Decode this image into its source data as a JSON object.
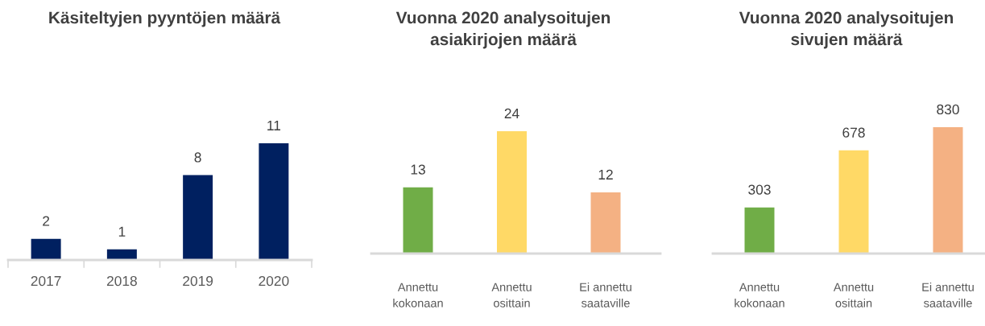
{
  "chart_data": [
    {
      "type": "bar",
      "title": "Käsiteltyjen pyyntöjen määrä",
      "categories": [
        "2017",
        "2018",
        "2019",
        "2020"
      ],
      "values": [
        2,
        1,
        8,
        11
      ],
      "color": "#002060",
      "data_labels": true,
      "tick_labels": "x"
    },
    {
      "type": "bar",
      "title": "Vuonna 2020 analysoitujen\nasiakirjojen määrä",
      "categories": [
        "Annettu\nkokonaan",
        "Annettu\nosittain",
        "Ei annettu\nsaataville"
      ],
      "values": [
        13,
        24,
        12
      ],
      "colors": [
        "#70ad47",
        "#ffd966",
        "#f4b183"
      ],
      "data_labels": true,
      "tick_labels": "x"
    },
    {
      "type": "bar",
      "title": "Vuonna 2020 analysoitujen\nsivujen määrä",
      "categories": [
        "Annettu\nkokonaan",
        "Annettu\nosittain",
        "Ei annettu\nsaataville"
      ],
      "values": [
        303,
        678,
        830
      ],
      "colors": [
        "#70ad47",
        "#ffd966",
        "#f4b183"
      ],
      "data_labels": true,
      "tick_labels": "x"
    }
  ]
}
